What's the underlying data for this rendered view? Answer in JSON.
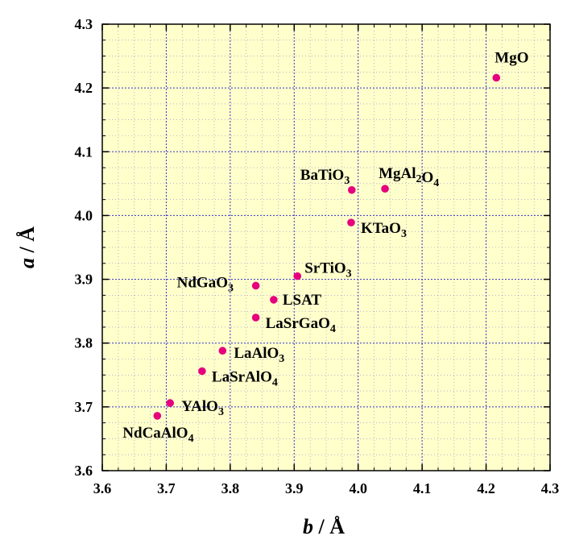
{
  "chart_data": {
    "type": "scatter",
    "xlabel": {
      "var": "b",
      "unit": " / Å"
    },
    "ylabel": {
      "var": "a",
      "unit": " / Å"
    },
    "xlim": [
      3.6,
      4.3
    ],
    "ylim": [
      3.6,
      4.3
    ],
    "xticks": [
      "3.6",
      "3.7",
      "3.8",
      "3.9",
      "4.0",
      "4.1",
      "4.2",
      "4.3"
    ],
    "yticks": [
      "3.6",
      "3.7",
      "3.8",
      "3.9",
      "4.0",
      "4.1",
      "4.2",
      "4.3"
    ],
    "grid": true,
    "background_color": "#ffffcc",
    "grid_color": "#3333cc",
    "marker_color": "#e6007e",
    "points": [
      {
        "x": 4.216,
        "y": 4.216,
        "label": "MgO",
        "parts": [
          [
            "MgO",
            ""
          ]
        ]
      },
      {
        "x": 3.99,
        "y": 4.04,
        "label": "BaTiO3",
        "parts": [
          [
            "BaTiO",
            ""
          ],
          [
            "3",
            "sub"
          ]
        ]
      },
      {
        "x": 4.042,
        "y": 4.042,
        "label": "MgAl2O4",
        "parts": [
          [
            "MgAl",
            ""
          ],
          [
            "2",
            "sub"
          ],
          [
            "O",
            ""
          ],
          [
            "4",
            "sub"
          ]
        ]
      },
      {
        "x": 3.989,
        "y": 3.989,
        "label": "KTaO3",
        "parts": [
          [
            "KTaO",
            ""
          ],
          [
            "3",
            "sub"
          ]
        ]
      },
      {
        "x": 3.905,
        "y": 3.905,
        "label": "SrTiO3",
        "parts": [
          [
            "SrTiO",
            ""
          ],
          [
            "3",
            "sub"
          ]
        ]
      },
      {
        "x": 3.84,
        "y": 3.89,
        "label": "NdGaO3",
        "parts": [
          [
            "NdGaO",
            ""
          ],
          [
            "3",
            "sub"
          ]
        ]
      },
      {
        "x": 3.868,
        "y": 3.868,
        "label": "LSAT",
        "parts": [
          [
            "LSAT",
            ""
          ]
        ]
      },
      {
        "x": 3.84,
        "y": 3.84,
        "label": "LaSrGaO4",
        "parts": [
          [
            "LaSrGaO",
            ""
          ],
          [
            "4",
            "sub"
          ]
        ]
      },
      {
        "x": 3.788,
        "y": 3.788,
        "label": "LaAlO3",
        "parts": [
          [
            "LaAlO",
            ""
          ],
          [
            "3",
            "sub"
          ]
        ]
      },
      {
        "x": 3.756,
        "y": 3.756,
        "label": "LaSrAlO4",
        "parts": [
          [
            "LaSrAlO",
            ""
          ],
          [
            "4",
            "sub"
          ]
        ]
      },
      {
        "x": 3.706,
        "y": 3.706,
        "label": "YAlO3",
        "parts": [
          [
            "YAlO",
            ""
          ],
          [
            "3",
            "sub"
          ]
        ]
      },
      {
        "x": 3.686,
        "y": 3.686,
        "label": "NdCaAlO4",
        "parts": [
          [
            "NdCaAlO",
            ""
          ],
          [
            "4",
            "sub"
          ]
        ]
      }
    ]
  }
}
